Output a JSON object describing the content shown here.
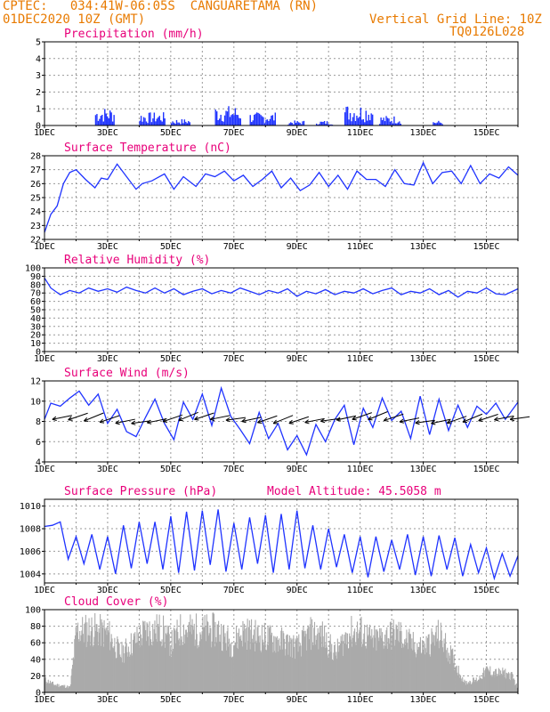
{
  "header": {
    "line1": "CPTEC:   034:41W-06:05S  CANGUARETAMA (RN)",
    "line2": "01DEC2020 10Z (GMT)",
    "grid_note": "Vertical Grid Line: 10Z",
    "code": "TQ0126L028"
  },
  "colors": {
    "header": "#e87a00",
    "panel_title": "#e8007a",
    "series_line": "#1f33ff",
    "bar_precip": "#1f33ff",
    "bar_cloud": "#aaaaaa",
    "grid": "#999999"
  },
  "chart_data": [
    {
      "type": "bar",
      "title": "Precipitation (mm/h)",
      "ylim": [
        0,
        5
      ],
      "yticks": [
        0,
        1,
        2,
        3,
        4,
        5
      ],
      "xticks": [
        "1DEC",
        "3DEC",
        "5DEC",
        "7DEC",
        "9DEC",
        "11DEC",
        "13DEC",
        "15DEC"
      ],
      "xlim_days": [
        1.0,
        16.0
      ],
      "grid": true,
      "bursts": [
        {
          "day_start": 2.6,
          "day_end": 3.2,
          "peak": 1.1
        },
        {
          "day_start": 4.0,
          "day_end": 4.8,
          "peak": 0.8
        },
        {
          "day_start": 5.0,
          "day_end": 5.6,
          "peak": 0.4
        },
        {
          "day_start": 6.4,
          "day_end": 7.2,
          "peak": 1.2
        },
        {
          "day_start": 7.5,
          "day_end": 8.3,
          "peak": 0.8
        },
        {
          "day_start": 8.7,
          "day_end": 9.2,
          "peak": 0.3
        },
        {
          "day_start": 9.6,
          "day_end": 10.1,
          "peak": 0.3
        },
        {
          "day_start": 10.5,
          "day_end": 11.4,
          "peak": 1.3
        },
        {
          "day_start": 11.6,
          "day_end": 12.3,
          "peak": 0.6
        },
        {
          "day_start": 13.3,
          "day_end": 13.6,
          "peak": 0.3
        }
      ]
    },
    {
      "type": "line",
      "title": "Surface Temperature (nC)",
      "ylim": [
        22,
        28
      ],
      "yticks": [
        22,
        23,
        24,
        25,
        26,
        27,
        28
      ],
      "xticks": [
        "1DEC",
        "3DEC",
        "5DEC",
        "7DEC",
        "9DEC",
        "11DEC",
        "13DEC",
        "15DEC"
      ],
      "xlim_days": [
        1.0,
        16.0
      ],
      "grid": true,
      "x_days": [
        1.0,
        1.2,
        1.4,
        1.6,
        1.8,
        2.0,
        2.3,
        2.6,
        2.8,
        3.0,
        3.3,
        3.6,
        3.9,
        4.1,
        4.4,
        4.8,
        5.1,
        5.4,
        5.8,
        6.1,
        6.4,
        6.7,
        7.0,
        7.3,
        7.6,
        7.9,
        8.2,
        8.5,
        8.8,
        9.1,
        9.4,
        9.7,
        10.0,
        10.3,
        10.6,
        10.9,
        11.2,
        11.5,
        11.8,
        12.1,
        12.4,
        12.7,
        13.0,
        13.3,
        13.6,
        13.9,
        14.2,
        14.5,
        14.8,
        15.1,
        15.4,
        15.7,
        16.0
      ],
      "values": [
        22.5,
        23.8,
        24.4,
        26.0,
        26.8,
        27.0,
        26.3,
        25.7,
        26.4,
        26.3,
        27.4,
        26.5,
        25.6,
        26.0,
        26.2,
        26.7,
        25.6,
        26.5,
        25.8,
        26.7,
        26.5,
        26.9,
        26.2,
        26.6,
        25.8,
        26.3,
        26.9,
        25.7,
        26.4,
        25.5,
        25.9,
        26.8,
        25.8,
        26.6,
        25.6,
        26.9,
        26.3,
        26.3,
        25.8,
        27.0,
        26.0,
        25.9,
        27.5,
        26.0,
        26.8,
        26.9,
        26.0,
        27.3,
        26.0,
        26.7,
        26.4,
        27.2,
        26.6
      ]
    },
    {
      "type": "line",
      "title": "Relative Humidity (%)",
      "ylim": [
        0,
        100
      ],
      "yticks": [
        0,
        10,
        20,
        30,
        40,
        50,
        60,
        70,
        80,
        90,
        100
      ],
      "xticks": [
        "1DEC",
        "3DEC",
        "5DEC",
        "7DEC",
        "9DEC",
        "11DEC",
        "13DEC",
        "15DEC"
      ],
      "xlim_days": [
        1.0,
        16.0
      ],
      "grid": true,
      "x_days": [
        1.0,
        1.2,
        1.5,
        1.8,
        2.1,
        2.4,
        2.7,
        3.0,
        3.3,
        3.6,
        3.9,
        4.2,
        4.5,
        4.8,
        5.1,
        5.4,
        5.7,
        6.0,
        6.3,
        6.6,
        6.9,
        7.2,
        7.5,
        7.8,
        8.1,
        8.4,
        8.7,
        9.0,
        9.3,
        9.6,
        9.9,
        10.2,
        10.5,
        10.8,
        11.1,
        11.4,
        11.7,
        12.0,
        12.3,
        12.6,
        12.9,
        13.2,
        13.5,
        13.8,
        14.1,
        14.4,
        14.7,
        15.0,
        15.3,
        15.6,
        16.0
      ],
      "values": [
        88,
        76,
        68,
        73,
        70,
        76,
        72,
        75,
        71,
        77,
        73,
        70,
        76,
        70,
        75,
        68,
        72,
        75,
        69,
        73,
        70,
        76,
        72,
        68,
        73,
        70,
        75,
        66,
        72,
        69,
        74,
        68,
        72,
        70,
        75,
        69,
        73,
        76,
        68,
        72,
        70,
        75,
        68,
        73,
        65,
        72,
        70,
        76,
        69,
        68,
        75
      ]
    },
    {
      "type": "line",
      "title": "Surface Wind (m/s)",
      "ylim": [
        4,
        12
      ],
      "yticks": [
        4,
        6,
        8,
        10,
        12
      ],
      "xticks": [
        "1DEC",
        "3DEC",
        "5DEC",
        "7DEC",
        "9DEC",
        "11DEC",
        "13DEC",
        "15DEC"
      ],
      "xlim_days": [
        1.0,
        16.0
      ],
      "grid": true,
      "vectors": "easterly to south-easterly wind arrows along the speed curve",
      "x_days": [
        1.0,
        1.2,
        1.5,
        1.8,
        2.1,
        2.4,
        2.7,
        3.0,
        3.3,
        3.6,
        3.9,
        4.2,
        4.5,
        4.8,
        5.1,
        5.4,
        5.7,
        6.0,
        6.3,
        6.6,
        6.9,
        7.2,
        7.5,
        7.8,
        8.1,
        8.4,
        8.7,
        9.0,
        9.3,
        9.6,
        9.9,
        10.2,
        10.5,
        10.8,
        11.1,
        11.4,
        11.7,
        12.0,
        12.3,
        12.6,
        12.9,
        13.2,
        13.5,
        13.8,
        14.1,
        14.4,
        14.7,
        15.0,
        15.3,
        15.6,
        16.0
      ],
      "values": [
        8.2,
        9.8,
        9.5,
        10.3,
        11.0,
        9.6,
        10.7,
        7.8,
        9.2,
        7.0,
        6.5,
        8.4,
        10.2,
        7.8,
        6.2,
        9.9,
        8.2,
        10.7,
        7.6,
        11.3,
        8.5,
        7.2,
        5.8,
        8.9,
        6.3,
        7.8,
        5.2,
        6.6,
        4.7,
        7.7,
        6.0,
        8.2,
        9.6,
        5.7,
        9.3,
        7.4,
        10.3,
        8.1,
        9.0,
        6.3,
        10.5,
        6.7,
        10.2,
        7.1,
        9.6,
        7.4,
        9.5,
        8.7,
        9.8,
        8.2,
        9.9
      ]
    },
    {
      "type": "line",
      "title": "Surface Pressure (hPa)",
      "annotation": "Model Altitude: 45.5058  m",
      "ylim": [
        1003.2,
        1010.6
      ],
      "yticks": [
        1004,
        1006,
        1008,
        1010
      ],
      "xticks": [
        "1DEC",
        "3DEC",
        "5DEC",
        "7DEC",
        "9DEC",
        "11DEC",
        "13DEC",
        "15DEC"
      ],
      "xlim_days": [
        1.0,
        16.0
      ],
      "grid": true,
      "x_days": [
        1.0,
        1.25,
        1.5,
        1.75,
        2.0,
        2.25,
        2.5,
        2.75,
        3.0,
        3.25,
        3.5,
        3.75,
        4.0,
        4.25,
        4.5,
        4.75,
        5.0,
        5.25,
        5.5,
        5.75,
        6.0,
        6.25,
        6.5,
        6.75,
        7.0,
        7.25,
        7.5,
        7.75,
        8.0,
        8.25,
        8.5,
        8.75,
        9.0,
        9.25,
        9.5,
        9.75,
        10.0,
        10.25,
        10.5,
        10.75,
        11.0,
        11.25,
        11.5,
        11.75,
        12.0,
        12.25,
        12.5,
        12.75,
        13.0,
        13.25,
        13.5,
        13.75,
        14.0,
        14.25,
        14.5,
        14.75,
        15.0,
        15.25,
        15.5,
        15.75,
        16.0
      ],
      "values": [
        1008.2,
        1008.3,
        1008.6,
        1005.3,
        1007.3,
        1004.9,
        1007.5,
        1004.4,
        1007.3,
        1004.0,
        1008.3,
        1004.5,
        1008.6,
        1004.9,
        1008.6,
        1004.4,
        1009.1,
        1004.1,
        1009.5,
        1004.3,
        1009.6,
        1004.8,
        1009.7,
        1004.2,
        1008.5,
        1004.4,
        1009.0,
        1004.9,
        1009.2,
        1004.1,
        1009.3,
        1004.4,
        1009.6,
        1004.5,
        1008.3,
        1004.4,
        1008.0,
        1004.6,
        1007.5,
        1004.1,
        1007.3,
        1003.7,
        1007.3,
        1004.2,
        1007.0,
        1004.4,
        1007.5,
        1003.9,
        1007.3,
        1003.8,
        1007.4,
        1004.4,
        1007.2,
        1003.8,
        1006.6,
        1004.1,
        1006.3,
        1003.6,
        1005.8,
        1003.8,
        1005.6
      ]
    },
    {
      "type": "bar",
      "title": "Cloud Cover (%)",
      "ylim": [
        0,
        100
      ],
      "yticks": [
        0,
        20,
        40,
        60,
        80,
        100
      ],
      "xticks": [
        "1DEC",
        "3DEC",
        "5DEC",
        "7DEC",
        "9DEC",
        "11DEC",
        "13DEC",
        "15DEC"
      ],
      "xlim_days": [
        1.0,
        16.0
      ],
      "grid": true,
      "envelope_days": [
        1.0,
        1.3,
        1.6,
        1.8,
        2.0,
        2.5,
        3.0,
        3.4,
        3.8,
        4.2,
        4.7,
        5.0,
        5.3,
        6.0,
        6.5,
        6.9,
        7.3,
        7.6,
        8.0,
        8.5,
        9.0,
        9.4,
        9.8,
        10.2,
        10.6,
        11.0,
        11.4,
        11.8,
        12.2,
        12.6,
        13.0,
        13.5,
        13.9,
        14.3,
        14.7,
        15.0,
        15.3,
        15.6,
        15.8,
        16.0
      ],
      "envelope_values": [
        20,
        12,
        10,
        8,
        95,
        98,
        92,
        60,
        78,
        96,
        98,
        75,
        98,
        96,
        97,
        75,
        95,
        90,
        85,
        80,
        70,
        92,
        88,
        60,
        92,
        95,
        80,
        88,
        92,
        75,
        70,
        90,
        55,
        15,
        20,
        35,
        30,
        30,
        25,
        5
      ]
    }
  ]
}
